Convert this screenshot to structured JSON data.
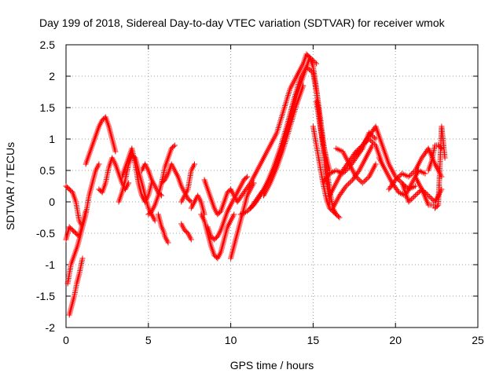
{
  "chart_data": {
    "type": "scatter",
    "title": "Day 199 of 2018, Sidereal Day-to-day VTEC variation (SDTVAR) for receiver wmok",
    "xlabel": "GPS time / hours",
    "ylabel": "SDTVAR / TECUs",
    "xlim": [
      0,
      25
    ],
    "ylim": [
      -2,
      2.5
    ],
    "x_ticks": [
      0,
      5,
      10,
      15,
      20,
      25
    ],
    "y_ticks": [
      -2,
      -1.5,
      -1,
      -0.5,
      0,
      0.5,
      1,
      1.5,
      2,
      2.5
    ],
    "x_tick_labels": [
      "0",
      "5",
      "10",
      "15",
      "20",
      "25"
    ],
    "y_tick_labels": [
      "-2",
      "-1.5",
      "-1",
      "-0.5",
      "0",
      "0.5",
      "1",
      "1.5",
      "2",
      "2.5"
    ],
    "grid": true,
    "marker": "plus",
    "color": "#ff0000",
    "series": [
      {
        "name": "SDTVAR",
        "tracks": [
          {
            "x": [
              0.0,
              0.2,
              0.4,
              0.6,
              0.8,
              1.0,
              1.2,
              1.4,
              1.6,
              1.8,
              2.0
            ],
            "y": [
              0.25,
              0.2,
              0.15,
              0.0,
              -0.3,
              -0.4,
              -0.2,
              0.1,
              0.3,
              0.5,
              0.6
            ]
          },
          {
            "x": [
              0.0,
              0.2,
              0.4,
              0.6,
              0.8,
              1.0,
              1.2
            ],
            "y": [
              -0.6,
              -0.4,
              -0.45,
              -0.5,
              -0.55,
              -0.35,
              -0.15
            ]
          },
          {
            "x": [
              0.1,
              0.3,
              0.5,
              0.7,
              0.9,
              1.1
            ],
            "y": [
              -1.3,
              -1.0,
              -0.85,
              -0.7,
              -0.5,
              -0.3
            ]
          },
          {
            "x": [
              0.2,
              0.35,
              0.5,
              0.65,
              0.8,
              1.0
            ],
            "y": [
              -1.8,
              -1.65,
              -1.5,
              -1.3,
              -1.15,
              -0.9
            ]
          },
          {
            "x": [
              1.2,
              1.4,
              1.6,
              1.8,
              2.0,
              2.2,
              2.4,
              2.6,
              2.8,
              3.0
            ],
            "y": [
              0.6,
              0.75,
              0.9,
              1.05,
              1.2,
              1.3,
              1.35,
              1.2,
              1.0,
              0.8
            ]
          },
          {
            "x": [
              2.0,
              2.2,
              2.4,
              2.6,
              2.8,
              3.0,
              3.2,
              3.4,
              3.6,
              3.8
            ],
            "y": [
              0.2,
              0.15,
              0.3,
              0.55,
              0.7,
              0.6,
              0.45,
              0.3,
              0.2,
              0.3
            ]
          },
          {
            "x": [
              3.2,
              3.4,
              3.6,
              3.8,
              4.0,
              4.2,
              4.4,
              4.6,
              4.8,
              5.0,
              5.2,
              5.4
            ],
            "y": [
              0.0,
              0.15,
              0.35,
              0.6,
              0.75,
              0.7,
              0.5,
              0.3,
              0.1,
              -0.1,
              -0.2,
              -0.3
            ]
          },
          {
            "x": [
              3.4,
              3.6,
              3.8,
              4.0,
              4.2,
              4.4,
              4.6,
              4.8,
              5.0,
              5.2
            ],
            "y": [
              0.4,
              0.55,
              0.7,
              0.85,
              0.6,
              0.3,
              0.1,
              0.0,
              0.1,
              0.3
            ]
          },
          {
            "x": [
              4.6,
              4.8,
              5.0,
              5.2,
              5.4,
              5.6,
              5.8
            ],
            "y": [
              0.5,
              0.6,
              0.5,
              0.35,
              0.25,
              0.15,
              0.1
            ]
          },
          {
            "x": [
              5.0,
              5.2,
              5.4,
              5.6,
              5.8,
              6.0,
              6.2,
              6.4,
              6.6
            ],
            "y": [
              -0.2,
              -0.15,
              -0.05,
              0.1,
              0.3,
              0.55,
              0.7,
              0.85,
              0.9
            ]
          },
          {
            "x": [
              5.8,
              6.0,
              6.2,
              6.4,
              6.6,
              6.8,
              7.0,
              7.2,
              7.4,
              7.6
            ],
            "y": [
              0.3,
              0.35,
              0.45,
              0.6,
              0.5,
              0.4,
              0.25,
              0.15,
              0.05,
              0.0
            ]
          },
          {
            "x": [
              5.6,
              5.7,
              5.8,
              5.9,
              6.0,
              6.1,
              6.2
            ],
            "y": [
              -0.2,
              -0.3,
              -0.4,
              -0.45,
              -0.55,
              -0.6,
              -0.65
            ]
          },
          {
            "x": [
              7.0,
              7.2,
              7.4,
              7.6
            ],
            "y": [
              -0.35,
              -0.45,
              -0.5,
              -0.6
            ]
          },
          {
            "x": [
              7.0,
              7.2,
              7.4,
              7.6,
              7.8
            ],
            "y": [
              0.0,
              0.1,
              0.2,
              0.5,
              0.6
            ]
          },
          {
            "x": [
              7.6,
              7.8,
              8.0,
              8.2,
              8.4
            ],
            "y": [
              -0.1,
              0.0,
              0.1,
              0.0,
              -0.2
            ]
          },
          {
            "x": [
              8.2,
              8.4,
              8.6,
              8.8,
              9.0,
              9.2,
              9.4,
              9.6,
              9.8,
              10.0,
              10.2
            ],
            "y": [
              -0.2,
              -0.3,
              -0.5,
              -0.7,
              -0.85,
              -0.9,
              -0.8,
              -0.6,
              -0.4,
              -0.3,
              -0.2
            ]
          },
          {
            "x": [
              8.4,
              8.6,
              8.8,
              9.0,
              9.2,
              9.4,
              9.6,
              9.8,
              10.0,
              10.2,
              10.4
            ],
            "y": [
              0.35,
              0.2,
              0.05,
              -0.1,
              -0.2,
              -0.15,
              0.0,
              0.15,
              0.2,
              0.1,
              0.0
            ]
          },
          {
            "x": [
              8.6,
              8.8,
              9.0,
              9.2,
              9.4,
              9.6,
              9.8,
              10.0,
              10.2,
              10.4,
              10.6,
              10.8,
              11.0
            ],
            "y": [
              -0.4,
              -0.55,
              -0.6,
              -0.55,
              -0.45,
              -0.3,
              -0.15,
              -0.05,
              0.05,
              0.15,
              0.25,
              0.35,
              0.4
            ]
          },
          {
            "x": [
              10.0,
              10.2,
              10.4,
              10.6,
              10.8,
              11.0,
              11.2,
              11.4
            ],
            "y": [
              -0.9,
              -0.7,
              -0.5,
              -0.3,
              -0.1,
              0.1,
              0.2,
              0.3
            ]
          },
          {
            "x": [
              10.4,
              10.8,
              11.2,
              11.6,
              12.0,
              12.4,
              12.8,
              13.2,
              13.6,
              14.0,
              14.4,
              14.6,
              14.8,
              15.0,
              15.2,
              15.4,
              15.6,
              15.8,
              16.0,
              16.2,
              16.4,
              16.6
            ],
            "y": [
              0.0,
              0.15,
              0.3,
              0.5,
              0.7,
              0.9,
              1.1,
              1.45,
              1.8,
              2.0,
              2.2,
              2.35,
              2.3,
              2.15,
              1.8,
              1.4,
              1.0,
              0.6,
              0.2,
              -0.1,
              -0.2,
              -0.25
            ]
          },
          {
            "x": [
              10.6,
              11.0,
              11.4,
              11.8,
              12.2,
              12.6,
              13.0,
              13.4,
              13.8,
              14.2,
              14.6,
              15.0,
              15.2,
              15.4,
              15.6,
              15.8,
              16.0
            ],
            "y": [
              -0.2,
              -0.15,
              -0.05,
              0.1,
              0.3,
              0.55,
              0.85,
              1.2,
              1.6,
              1.95,
              2.15,
              2.05,
              1.75,
              1.3,
              0.85,
              0.4,
              0.0
            ]
          },
          {
            "x": [
              11.2,
              11.6,
              12.0,
              12.4,
              12.8,
              13.2,
              13.6,
              14.0,
              14.4,
              14.8,
              15.2
            ],
            "y": [
              -0.1,
              0.05,
              0.2,
              0.4,
              0.65,
              0.95,
              1.3,
              1.7,
              2.0,
              2.3,
              2.2
            ]
          },
          {
            "x": [
              12.0,
              12.4,
              12.8,
              13.2,
              13.6,
              14.0,
              14.4
            ],
            "y": [
              0.1,
              0.3,
              0.55,
              0.85,
              1.2,
              1.55,
              1.85
            ]
          },
          {
            "x": [
              15.2,
              15.4,
              15.6,
              15.8,
              16.0
            ],
            "y": [
              1.6,
              1.25,
              0.95,
              0.7,
              0.5
            ]
          },
          {
            "x": [
              15.0,
              15.2,
              15.4,
              15.6,
              15.8,
              16.0,
              16.2,
              16.4
            ],
            "y": [
              1.2,
              0.9,
              0.6,
              0.3,
              0.05,
              -0.1,
              -0.15,
              -0.2
            ]
          },
          {
            "x": [
              16.0,
              16.4,
              16.8,
              17.2,
              17.6,
              18.0,
              18.4,
              18.8,
              19.2
            ],
            "y": [
              0.1,
              0.3,
              0.5,
              0.65,
              0.8,
              0.9,
              1.0,
              0.9,
              0.6
            ]
          },
          {
            "x": [
              15.6,
              16.0,
              16.4,
              16.8,
              17.2,
              17.6,
              18.0,
              18.4,
              18.8
            ],
            "y": [
              0.3,
              0.45,
              0.5,
              0.45,
              0.55,
              0.7,
              0.85,
              1.1,
              1.0
            ]
          },
          {
            "x": [
              16.2,
              16.6,
              17.0,
              17.4,
              17.8,
              18.2,
              18.6
            ],
            "y": [
              -0.1,
              0.1,
              0.25,
              0.35,
              0.5,
              0.7,
              0.9
            ]
          },
          {
            "x": [
              16.4,
              16.8,
              17.2,
              17.6,
              18.0,
              18.4,
              18.8
            ],
            "y": [
              0.85,
              0.8,
              0.6,
              0.4,
              0.3,
              0.4,
              0.6
            ]
          },
          {
            "x": [
              17.6,
              18.0,
              18.4,
              18.8,
              19.2,
              19.6,
              20.0,
              20.4,
              20.8,
              21.2
            ],
            "y": [
              0.75,
              0.9,
              1.05,
              1.2,
              0.9,
              0.6,
              0.4,
              0.3,
              0.2,
              0.25
            ]
          },
          {
            "x": [
              19.0,
              19.4,
              19.8,
              20.2,
              20.6,
              21.0,
              21.4,
              21.8
            ],
            "y": [
              0.7,
              0.5,
              0.3,
              0.15,
              0.1,
              0.3,
              0.5,
              0.45
            ]
          },
          {
            "x": [
              19.6,
              20.0,
              20.4,
              20.8,
              21.2,
              21.6,
              22.0,
              22.4,
              22.8
            ],
            "y": [
              0.2,
              0.35,
              0.45,
              0.4,
              0.5,
              0.7,
              0.85,
              0.6,
              0.4
            ]
          },
          {
            "x": [
              20.4,
              20.8,
              21.2,
              21.6,
              22.0,
              22.4,
              22.8
            ],
            "y": [
              0.3,
              0.0,
              0.1,
              0.2,
              0.1,
              0.0,
              0.2
            ]
          },
          {
            "x": [
              21.2,
              21.6,
              22.0,
              22.4
            ],
            "y": [
              0.4,
              0.2,
              -0.05,
              -0.05
            ]
          },
          {
            "x": [
              22.4,
              22.6,
              22.8,
              23.0
            ],
            "y": [
              -0.1,
              -0.05,
              1.2,
              0.7
            ]
          },
          {
            "x": [
              22.0,
              22.2,
              22.4,
              22.6,
              22.8
            ],
            "y": [
              0.5,
              0.65,
              0.9,
              0.9,
              0.85
            ]
          }
        ]
      }
    ]
  }
}
